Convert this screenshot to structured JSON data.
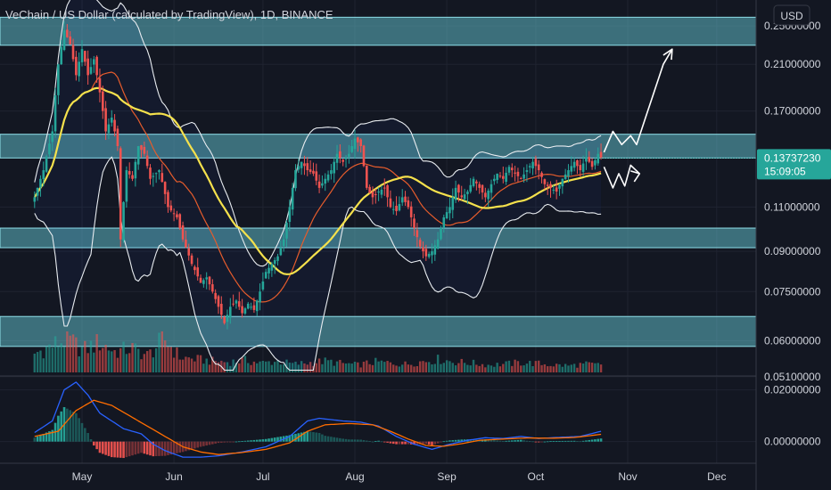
{
  "legend_title": "VeChain / US Dollar (calculated by TradingView), 1D, BINANCE",
  "currency": "USD",
  "colors": {
    "background": "#131722",
    "grid": "#1f2330",
    "up": "#26a69a",
    "down": "#ef5350",
    "zone_fill": "#5fb8c4",
    "zone_border": "#8fe0ea",
    "bollinger": "#e8ecf0",
    "ma_fast": "#e65c2c",
    "ma_slow": "#f5e14c",
    "macd_line": "#2962ff",
    "macd_signal": "#ff6d00",
    "hist_pos": "#26a69a",
    "hist_neg": "#ef5350",
    "arrow": "#ffffff",
    "price_tag": "#26a69a"
  },
  "chart_data": [
    {
      "type": "candlestick",
      "pane": "price",
      "y_scale": "log",
      "ylim": [
        0.052,
        0.27
      ],
      "y_ticks": [
        {
          "value": 0.25,
          "label": "0.25000000"
        },
        {
          "value": 0.21,
          "label": "0.21000000"
        },
        {
          "value": 0.17,
          "label": "0.17000000"
        },
        {
          "value": 0.11,
          "label": "0.11000000"
        },
        {
          "value": 0.09,
          "label": "0.09000000"
        },
        {
          "value": 0.075,
          "label": "0.07500000"
        },
        {
          "value": 0.06,
          "label": "0.06000000"
        },
        {
          "value": 0.051,
          "label": "0.05100000"
        }
      ],
      "x_ticks": [
        "May",
        "Jun",
        "Jul",
        "Aug",
        "Sep",
        "Oct",
        "Nov",
        "Dec"
      ],
      "x_tick_days": [
        16,
        47,
        77,
        108,
        139,
        169,
        200,
        230
      ],
      "last_day": 191,
      "last_price": {
        "value": 0.1373723,
        "label": "0.13737230",
        "countdown": "15:09:05"
      },
      "support_resistance_zones": [
        {
          "low": 0.229,
          "high": 0.26
        },
        {
          "low": 0.1374,
          "high": 0.153
        },
        {
          "low": 0.0915,
          "high": 0.1
        },
        {
          "low": 0.0585,
          "high": 0.067
        }
      ],
      "price_path": [
        [
          0,
          0.115
        ],
        [
          3,
          0.13
        ],
        [
          6,
          0.155
        ],
        [
          8,
          0.21
        ],
        [
          10,
          0.245
        ],
        [
          12,
          0.23
        ],
        [
          14,
          0.2
        ],
        [
          16,
          0.225
        ],
        [
          18,
          0.2
        ],
        [
          20,
          0.215
        ],
        [
          22,
          0.185
        ],
        [
          24,
          0.155
        ],
        [
          26,
          0.165
        ],
        [
          28,
          0.145
        ],
        [
          29,
          0.095
        ],
        [
          31,
          0.13
        ],
        [
          33,
          0.125
        ],
        [
          35,
          0.145
        ],
        [
          37,
          0.14
        ],
        [
          39,
          0.125
        ],
        [
          42,
          0.13
        ],
        [
          45,
          0.11
        ],
        [
          48,
          0.105
        ],
        [
          50,
          0.095
        ],
        [
          53,
          0.085
        ],
        [
          56,
          0.078
        ],
        [
          58,
          0.08
        ],
        [
          60,
          0.075
        ],
        [
          62,
          0.07
        ],
        [
          64,
          0.065
        ],
        [
          66,
          0.07
        ],
        [
          68,
          0.072
        ],
        [
          70,
          0.068
        ],
        [
          72,
          0.071
        ],
        [
          74,
          0.069
        ],
        [
          76,
          0.075
        ],
        [
          78,
          0.082
        ],
        [
          80,
          0.085
        ],
        [
          82,
          0.088
        ],
        [
          84,
          0.095
        ],
        [
          86,
          0.11
        ],
        [
          88,
          0.13
        ],
        [
          90,
          0.135
        ],
        [
          92,
          0.13
        ],
        [
          94,
          0.128
        ],
        [
          96,
          0.12
        ],
        [
          98,
          0.125
        ],
        [
          100,
          0.13
        ],
        [
          102,
          0.14
        ],
        [
          104,
          0.135
        ],
        [
          106,
          0.14
        ],
        [
          108,
          0.15
        ],
        [
          110,
          0.145
        ],
        [
          112,
          0.12
        ],
        [
          114,
          0.115
        ],
        [
          116,
          0.118
        ],
        [
          118,
          0.12
        ],
        [
          120,
          0.11
        ],
        [
          122,
          0.108
        ],
        [
          124,
          0.115
        ],
        [
          126,
          0.11
        ],
        [
          128,
          0.1
        ],
        [
          130,
          0.092
        ],
        [
          132,
          0.088
        ],
        [
          134,
          0.09
        ],
        [
          136,
          0.095
        ],
        [
          138,
          0.105
        ],
        [
          140,
          0.11
        ],
        [
          142,
          0.12
        ],
        [
          144,
          0.115
        ],
        [
          146,
          0.118
        ],
        [
          148,
          0.125
        ],
        [
          150,
          0.12
        ],
        [
          152,
          0.115
        ],
        [
          154,
          0.122
        ],
        [
          156,
          0.128
        ],
        [
          158,
          0.125
        ],
        [
          160,
          0.132
        ],
        [
          162,
          0.128
        ],
        [
          164,
          0.125
        ],
        [
          166,
          0.13
        ],
        [
          168,
          0.135
        ],
        [
          170,
          0.13
        ],
        [
          172,
          0.122
        ],
        [
          174,
          0.12
        ],
        [
          176,
          0.118
        ],
        [
          178,
          0.125
        ],
        [
          180,
          0.13
        ],
        [
          182,
          0.135
        ],
        [
          184,
          0.13
        ],
        [
          186,
          0.138
        ],
        [
          188,
          0.132
        ],
        [
          190,
          0.14
        ],
        [
          191,
          0.1374
        ]
      ],
      "volume_levels": [
        0.5,
        0.7,
        0.9,
        0.6,
        0.8,
        0.55,
        0.65,
        0.45,
        0.9,
        0.4,
        0.35,
        0.3,
        0.28,
        0.32,
        0.25,
        0.3,
        0.22,
        0.26,
        0.3,
        0.24,
        0.2,
        0.28,
        0.25,
        0.22,
        0.3,
        0.35,
        0.28,
        0.25,
        0.2,
        0.22,
        0.26,
        0.24,
        0.2,
        0.18,
        0.22,
        0.2
      ],
      "projection_path": [
        [
          192,
          0.141
        ],
        [
          195,
          0.155
        ],
        [
          198,
          0.146
        ],
        [
          201,
          0.152
        ],
        [
          203,
          0.146
        ],
        [
          206,
          0.165
        ],
        [
          212,
          0.21
        ],
        [
          215,
          0.225
        ]
      ],
      "projection_path_alt": [
        [
          192,
          0.132
        ],
        [
          195,
          0.12
        ],
        [
          197,
          0.128
        ],
        [
          199,
          0.121
        ],
        [
          201,
          0.133
        ],
        [
          204,
          0.128
        ]
      ]
    },
    {
      "type": "macd",
      "pane": "indicator",
      "ylim": [
        -0.007,
        0.024
      ],
      "y_ticks": [
        {
          "value": 0.02,
          "label": "0.02000000"
        },
        {
          "value": 0.0,
          "label": "0.00000000"
        }
      ],
      "macd_path": [
        [
          0,
          0.0035
        ],
        [
          6,
          0.008
        ],
        [
          10,
          0.02
        ],
        [
          14,
          0.023
        ],
        [
          18,
          0.018
        ],
        [
          22,
          0.011
        ],
        [
          26,
          0.008
        ],
        [
          30,
          0.005
        ],
        [
          36,
          0.003
        ],
        [
          40,
          -0.001
        ],
        [
          44,
          -0.0035
        ],
        [
          50,
          -0.006
        ],
        [
          56,
          -0.006
        ],
        [
          62,
          -0.0055
        ],
        [
          70,
          -0.004
        ],
        [
          78,
          -0.002
        ],
        [
          86,
          0.002
        ],
        [
          92,
          0.008
        ],
        [
          96,
          0.009
        ],
        [
          104,
          0.008
        ],
        [
          110,
          0.0075
        ],
        [
          116,
          0.006
        ],
        [
          122,
          0.002
        ],
        [
          128,
          -0.001
        ],
        [
          134,
          -0.003
        ],
        [
          140,
          -0.001
        ],
        [
          146,
          0.0005
        ],
        [
          152,
          0.0015
        ],
        [
          158,
          0.0012
        ],
        [
          164,
          0.002
        ],
        [
          170,
          0.0012
        ],
        [
          176,
          0.0016
        ],
        [
          184,
          0.002
        ],
        [
          191,
          0.004
        ]
      ],
      "signal_path": [
        [
          0,
          0.002
        ],
        [
          8,
          0.004
        ],
        [
          14,
          0.012
        ],
        [
          20,
          0.016
        ],
        [
          26,
          0.014
        ],
        [
          32,
          0.01
        ],
        [
          38,
          0.006
        ],
        [
          44,
          0.002
        ],
        [
          50,
          -0.002
        ],
        [
          56,
          -0.004
        ],
        [
          62,
          -0.005
        ],
        [
          70,
          -0.0042
        ],
        [
          78,
          -0.003
        ],
        [
          86,
          -0.0005
        ],
        [
          92,
          0.004
        ],
        [
          98,
          0.0065
        ],
        [
          106,
          0.007
        ],
        [
          114,
          0.0065
        ],
        [
          120,
          0.004
        ],
        [
          126,
          0.001
        ],
        [
          132,
          -0.0015
        ],
        [
          138,
          -0.0018
        ],
        [
          144,
          -0.0008
        ],
        [
          150,
          0.0005
        ],
        [
          158,
          0.001
        ],
        [
          166,
          0.0014
        ],
        [
          174,
          0.0013
        ],
        [
          182,
          0.0016
        ],
        [
          191,
          0.0028
        ]
      ]
    }
  ]
}
